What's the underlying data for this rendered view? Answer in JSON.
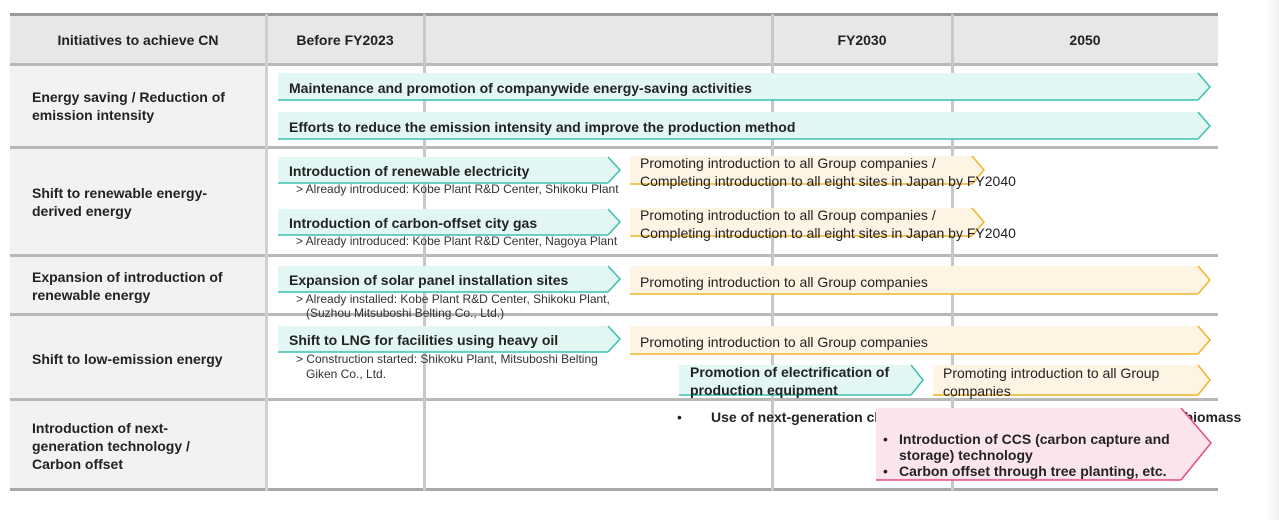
{
  "header": {
    "col_initiatives": "Initiatives to achieve CN",
    "col_before": "Before FY2023",
    "col_fy2030": "FY2030",
    "col_2050": "2050"
  },
  "rows": [
    {
      "label": "Energy saving / Reduction of emission intensity",
      "bars": [
        "Maintenance and promotion of companywide energy-saving activities",
        "Efforts to reduce the emission intensity and improve the production method"
      ]
    },
    {
      "label": "Shift to renewable energy-derived energy",
      "bars": [
        {
          "title": "Introduction of renewable electricity",
          "note": "> Already introduced: Kobe Plant R&D Center, Shikoku Plant",
          "next_line1": "Promoting introduction to all Group companies /",
          "next_line2": "Completing introduction to all eight sites in Japan by FY2040"
        },
        {
          "title": "Introduction of carbon-offset city gas",
          "note": "> Already introduced: Kobe Plant R&D Center, Nagoya Plant",
          "next_line1": "Promoting introduction to all Group companies /",
          "next_line2": "Completing introduction to all eight sites in Japan by FY2040"
        }
      ]
    },
    {
      "label": "Expansion of introduction of renewable energy",
      "bar": {
        "title": "Expansion of solar panel installation sites",
        "note_line1": "> Already installed: Kobe Plant R&D Center, Shikoku Plant,",
        "note_line2": "(Suzhou Mitsuboshi Belting Co., Ltd.)",
        "next": "Promoting introduction to all Group companies"
      }
    },
    {
      "label": "Shift to low-emission energy",
      "bar": {
        "title": "Shift to LNG for facilities using heavy oil",
        "note_line1": "> Construction started: Shikoku Plant, Mitsuboshi Belting",
        "note_line2": "Giken Co., Ltd.",
        "next": "Promoting introduction to all Group companies",
        "elec_line1": "Promotion of electrification of",
        "elec_line2": "production equipment",
        "elec_next_line1": "Promoting introduction to all Group",
        "elec_next_line2": "companies"
      }
    },
    {
      "label": "Introduction of next-generation technology / Carbon offset",
      "bullet_main": "Use of next-generation clean energy, such as hydrogen, ammonia, and biomass",
      "bullets": [
        "Introduction of CCS (carbon capture and",
        "storage) technology",
        "Carbon offset through tree planting, etc."
      ],
      "bullet_char": "•"
    }
  ],
  "colors": {
    "teal_fill": "#e2f6f3",
    "teal_border": "#3cc0b0",
    "yellow_fill": "#fdf4e4",
    "yellow_border": "#f0b429",
    "pink_fill": "#fce4ec",
    "pink_border": "#e94a7a",
    "header_bg": "#e7e7e7",
    "row_bg": "#f2f2f2"
  }
}
